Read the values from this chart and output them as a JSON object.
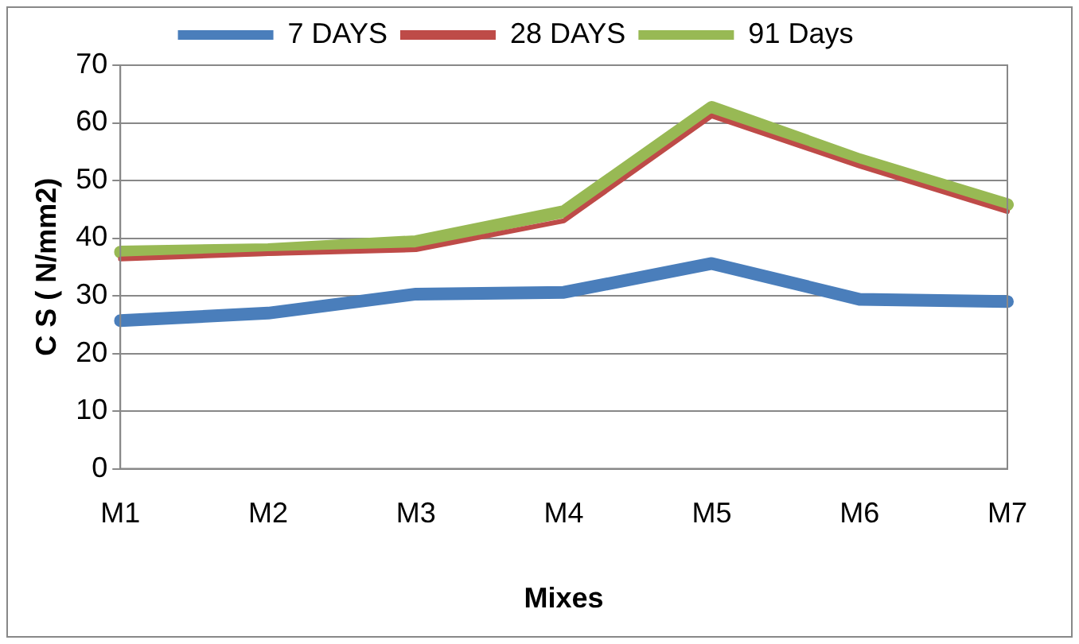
{
  "chart_data": {
    "type": "line",
    "xlabel": "Mixes",
    "ylabel": "C S ( N/mm2)",
    "categories": [
      "M1",
      "M2",
      "M3",
      "M4",
      "M5",
      "M6",
      "M7"
    ],
    "series": [
      {
        "name": "7 DAYS",
        "color": "#4a7ebb",
        "values": [
          25.7,
          27,
          30.3,
          30.6,
          35.6,
          29.4,
          29
        ]
      },
      {
        "name": "28 DAYS",
        "color": "#be4b48",
        "values": [
          36.4,
          37.3,
          38,
          43,
          61.2,
          52.5,
          44.6
        ]
      },
      {
        "name": "91 Days",
        "color": "#98b954",
        "values": [
          37.6,
          38,
          39.4,
          44.6,
          62.7,
          53.6,
          45.8
        ]
      }
    ],
    "ylim": [
      0,
      70
    ],
    "yticks": [
      0,
      10,
      20,
      30,
      40,
      50,
      60,
      70
    ],
    "grid": "y",
    "legend": "top",
    "marker": "none",
    "line_style": "solid"
  }
}
